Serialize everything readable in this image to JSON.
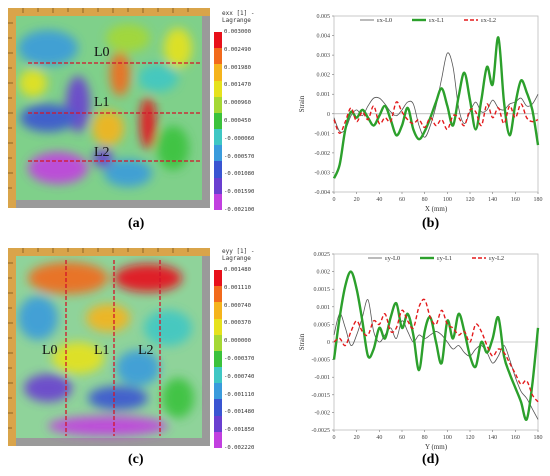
{
  "panels": [
    {
      "caption": "(a)",
      "colorbar": {
        "title": [
          "exx [1] -",
          "Lagrange"
        ],
        "ticks": [
          "0.003000",
          "0.002490",
          "0.001980",
          "0.001470",
          "0.000960",
          "0.000450",
          "-0.000060",
          "-0.000570",
          "-0.001080",
          "-0.001590",
          "-0.002100"
        ]
      },
      "lines": [
        "L0",
        "L1",
        "L2"
      ],
      "line_orientation": "horizontal"
    },
    {
      "caption": "(c)",
      "colorbar": {
        "title": [
          "eyy [1] -",
          "Lagrange"
        ],
        "ticks": [
          "0.001480",
          "0.001110",
          "0.000740",
          "0.000370",
          "0.000000",
          "-0.000370",
          "-0.000740",
          "-0.001110",
          "-0.001480",
          "-0.001850",
          "-0.002220"
        ]
      },
      "lines": [
        "L0",
        "L1",
        "L2"
      ],
      "line_orientation": "vertical"
    }
  ],
  "colorbar_colors": [
    "#e8101a",
    "#f26a1c",
    "#f5b41d",
    "#e6e21e",
    "#a5d835",
    "#3bc23c",
    "#3fc7c4",
    "#3a9bdc",
    "#3a55d2",
    "#6a3fd0",
    "#c23fe0"
  ],
  "chart_captions": [
    "(b)",
    "(d)"
  ],
  "chart_data": [
    {
      "type": "line",
      "xlabel": "X (mm)",
      "ylabel": "Strain",
      "xlim": [
        0,
        180
      ],
      "ylim": [
        -0.004,
        0.005
      ],
      "xticks": [
        0,
        20,
        40,
        60,
        80,
        100,
        120,
        140,
        160,
        180
      ],
      "yticks": [
        0.005,
        0.004,
        0.003,
        0.002,
        0.001,
        0,
        -0.001,
        -0.002,
        -0.003,
        -0.004
      ],
      "ytick_labels": [
        "0.005",
        "0.004",
        "0.003",
        "0.002",
        "0.001",
        "0",
        "-0.001",
        "-0.002",
        "-0.003",
        "-0.004"
      ],
      "legend_position": "top-left",
      "series": [
        {
          "name": "εx-L0",
          "color": "#555555",
          "style": "thin",
          "x": [
            0,
            5,
            10,
            15,
            20,
            25,
            30,
            35,
            40,
            45,
            50,
            55,
            60,
            65,
            70,
            75,
            80,
            85,
            90,
            95,
            100,
            105,
            110,
            115,
            120,
            125,
            130,
            135,
            140,
            145,
            150,
            155,
            160,
            165,
            170,
            175,
            180
          ],
          "y": [
            -0.0002,
            -0.0009,
            -0.0008,
            -0.0001,
            0.0002,
            -0.0001,
            0.0004,
            0.0008,
            0.0008,
            0.0005,
            0.0001,
            -0.0001,
            0.0002,
            0.0006,
            0.0005,
            -0.0006,
            -0.0012,
            -0.0006,
            0.0004,
            0.0018,
            0.0031,
            0.0024,
            0.0003,
            -0.0005,
            0.0001,
            0.0006,
            0.0001,
            0.0002,
            0.0007,
            0.0003,
            0.0002,
            0.0005,
            0.0006,
            0.0008,
            0.0004,
            0.0005,
            0.001
          ]
        },
        {
          "name": "εx-L1",
          "color": "#2ca02c",
          "style": "thick",
          "x": [
            0,
            5,
            10,
            15,
            20,
            25,
            30,
            35,
            40,
            45,
            50,
            55,
            60,
            65,
            70,
            75,
            80,
            85,
            90,
            95,
            100,
            105,
            110,
            115,
            120,
            125,
            130,
            135,
            140,
            145,
            150,
            155,
            160,
            165,
            170,
            175,
            180
          ],
          "y": [
            -0.0033,
            -0.0026,
            -0.0008,
            0.0001,
            -0.0002,
            0.0002,
            -0.0002,
            -0.0006,
            -0.0001,
            0.0004,
            -0.0003,
            -0.0011,
            -0.0006,
            0.0003,
            -0.0008,
            -0.0013,
            -0.0009,
            -0.0002,
            0.0006,
            0.0013,
            0.0004,
            -0.0006,
            0.0009,
            0.0021,
            0.0007,
            -0.0008,
            0.0007,
            0.0024,
            0.0015,
            0.0039,
            0.0006,
            -0.0011,
            0.0005,
            0.0017,
            0.0011,
            0.0002,
            -0.0016
          ]
        },
        {
          "name": "εx-L2",
          "color": "#e31a1c",
          "style": "dashed",
          "x": [
            0,
            5,
            10,
            15,
            20,
            25,
            30,
            35,
            40,
            45,
            50,
            55,
            60,
            65,
            70,
            75,
            80,
            85,
            90,
            95,
            100,
            105,
            110,
            115,
            120,
            125,
            130,
            135,
            140,
            145,
            150,
            155,
            160,
            165,
            170,
            175,
            180
          ],
          "y": [
            -0.0003,
            -0.001,
            -0.0004,
            0.0003,
            -0.0004,
            0.0001,
            -0.0003,
            0.0004,
            -0.0005,
            -0.0002,
            -0.0004,
            0.0006,
            0.0001,
            -0.0003,
            -0.0005,
            -0.0003,
            -0.0007,
            -0.0002,
            -0.0006,
            -0.0003,
            -0.0008,
            -0.0001,
            -0.0002,
            -0.0006,
            0.0002,
            0.0001,
            -0.0006,
            0.0005,
            -0.0002,
            0.0003,
            -0.0005,
            0.0004,
            -0.0002,
            0.0005,
            -0.0002,
            -0.0004,
            -0.0003
          ]
        }
      ]
    },
    {
      "type": "line",
      "xlabel": "Y (mm)",
      "ylabel": "Strain",
      "xlim": [
        0,
        180
      ],
      "ylim": [
        -0.0025,
        0.0025
      ],
      "xticks": [
        0,
        20,
        40,
        60,
        80,
        100,
        120,
        140,
        160,
        180
      ],
      "yticks": [
        0.0025,
        0.002,
        0.0015,
        0.001,
        0.0005,
        0,
        -0.0005,
        -0.001,
        -0.0015,
        -0.002,
        -0.0025
      ],
      "ytick_labels": [
        "0.0025",
        "0.002",
        "0.0015",
        "0.001",
        "0.0005",
        "0",
        "-0.0005",
        "-0.001",
        "-0.0015",
        "-0.002",
        "-0.0025"
      ],
      "legend_position": "top",
      "series": [
        {
          "name": "εy-L0",
          "color": "#555555",
          "style": "thin",
          "x": [
            0,
            5,
            10,
            15,
            20,
            25,
            30,
            35,
            40,
            45,
            50,
            55,
            60,
            65,
            70,
            75,
            80,
            85,
            90,
            95,
            100,
            105,
            110,
            115,
            120,
            125,
            130,
            135,
            140,
            145,
            150,
            155,
            160,
            165,
            170,
            175,
            180
          ],
          "y": [
            0.0002,
            0.0008,
            0.0004,
            -0.0001,
            0.0002,
            0.0007,
            0.0012,
            0.0003,
            0.0,
            0.0002,
            0.0004,
            0.0001,
            0.0006,
            0.0003,
            0.0,
            0.0002,
            0.0001,
            0.0002,
            0.0003,
            0.0002,
            0.0,
            -0.0002,
            -0.0001,
            -0.0003,
            -0.0004,
            -0.0002,
            -0.0001,
            -0.0003,
            -0.0006,
            -0.0004,
            -0.0001,
            -0.0005,
            -0.001,
            -0.0014,
            -0.0016,
            -0.0019,
            -0.0022
          ]
        },
        {
          "name": "εy-L1",
          "color": "#2ca02c",
          "style": "thick",
          "x": [
            0,
            5,
            10,
            15,
            20,
            25,
            30,
            35,
            40,
            45,
            50,
            55,
            60,
            65,
            70,
            75,
            80,
            85,
            90,
            95,
            100,
            105,
            110,
            115,
            120,
            125,
            130,
            135,
            140,
            145,
            150,
            155,
            160,
            165,
            170,
            175,
            180
          ],
          "y": [
            -0.0005,
            0.0007,
            0.0016,
            0.002,
            0.0015,
            0.0006,
            -0.0004,
            -0.0002,
            0.0004,
            0.0001,
            0.0007,
            0.0011,
            0.0004,
            0.0008,
            0.0002,
            -0.0008,
            0.0003,
            0.0007,
            0.0,
            -0.0006,
            0.0006,
            0.0001,
            0.0008,
            0.0003,
            -0.0004,
            -0.0007,
            0.0,
            -0.0003,
            0.0001,
            0.0007,
            -0.0004,
            -0.0009,
            -0.0013,
            -0.0017,
            -0.0022,
            -0.0012,
            0.0004
          ]
        },
        {
          "name": "εy-L2",
          "color": "#e31a1c",
          "style": "dashed",
          "x": [
            0,
            5,
            10,
            15,
            20,
            25,
            30,
            35,
            40,
            45,
            50,
            55,
            60,
            65,
            70,
            75,
            80,
            85,
            90,
            95,
            100,
            105,
            110,
            115,
            120,
            125,
            130,
            135,
            140,
            145,
            150,
            155,
            160,
            165,
            170,
            175,
            180
          ],
          "y": [
            0.0,
            0.0001,
            -0.0001,
            0.0003,
            0.0006,
            0.0003,
            0.0002,
            0.0006,
            0.0005,
            0.0008,
            0.0003,
            0.0004,
            0.0009,
            0.0006,
            0.0004,
            0.001,
            0.0012,
            0.0007,
            0.0005,
            0.0009,
            0.0005,
            0.0004,
            0.0002,
            0.0003,
            0.0,
            0.0005,
            0.0003,
            -0.0001,
            -0.0004,
            -0.0002,
            -0.0003,
            -0.0006,
            -0.0009,
            -0.0012,
            -0.0011,
            -0.0015,
            -0.0017
          ]
        }
      ]
    }
  ]
}
